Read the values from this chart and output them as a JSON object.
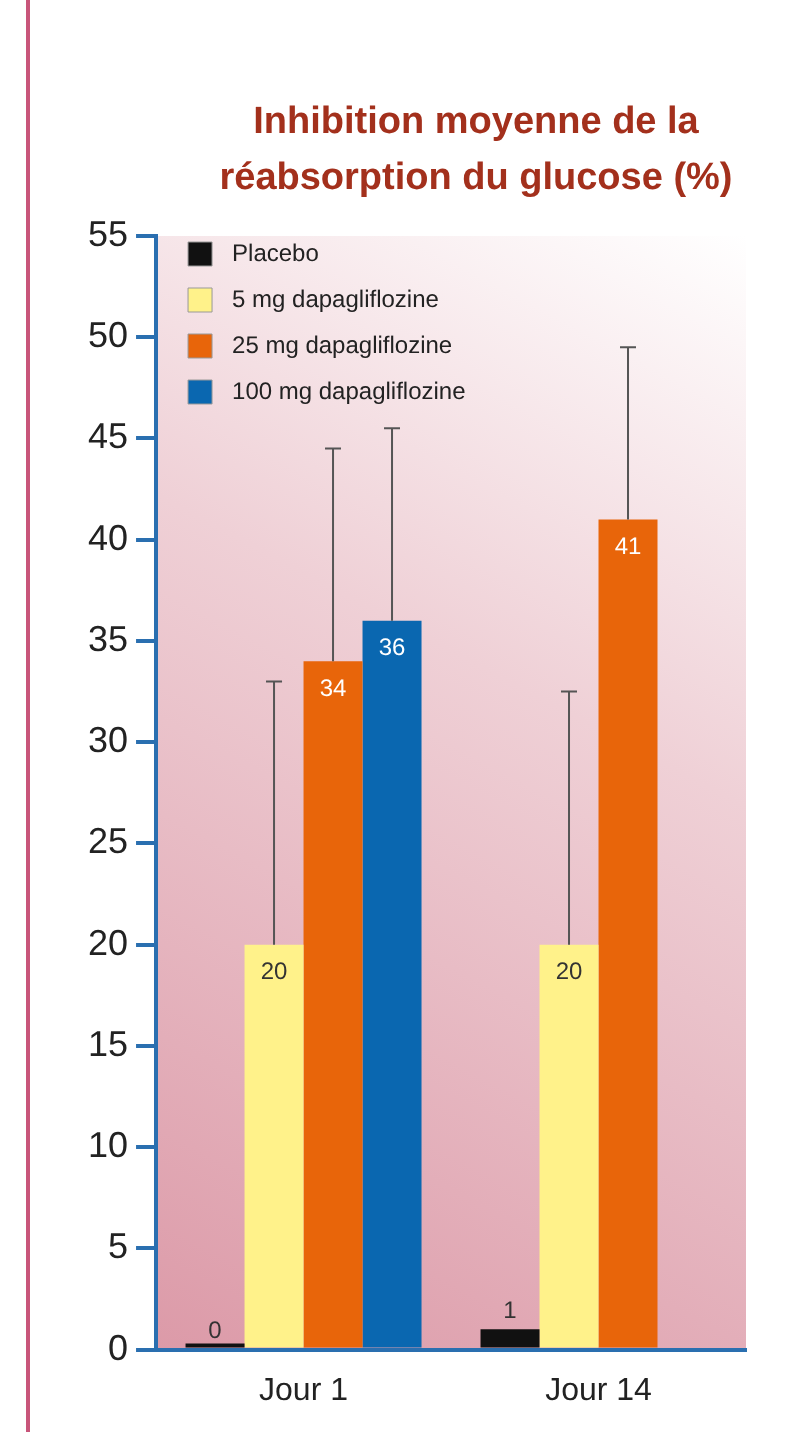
{
  "chart_data": {
    "type": "bar",
    "title": "Inhibition moyenne de la réabsorption du glucose (%)",
    "categories": [
      "Jour 1",
      "Jour 14"
    ],
    "series": [
      {
        "name": "Placebo",
        "color": "#111111",
        "values": [
          0,
          1
        ]
      },
      {
        "name": "5 mg dapagliflozine",
        "color": "#fff28a",
        "values": [
          20,
          20
        ],
        "errors": [
          [
            20,
            33
          ],
          [
            20,
            32.5
          ]
        ]
      },
      {
        "name": "25 mg dapagliflozine",
        "color": "#e8650a",
        "values": [
          34,
          41
        ],
        "errors": [
          [
            34,
            44.5
          ],
          [
            41,
            49.5
          ]
        ]
      },
      {
        "name": "100 mg dapagliflozine",
        "color": "#0a67b0",
        "values": [
          36,
          null
        ],
        "errors": [
          [
            36,
            45.5
          ],
          null
        ]
      }
    ],
    "ylim": [
      0,
      55
    ],
    "yticks": [
      0,
      5,
      10,
      15,
      20,
      25,
      30,
      35,
      40,
      45,
      50,
      55
    ],
    "grid": false,
    "legend": "top left",
    "data_labels": true
  }
}
